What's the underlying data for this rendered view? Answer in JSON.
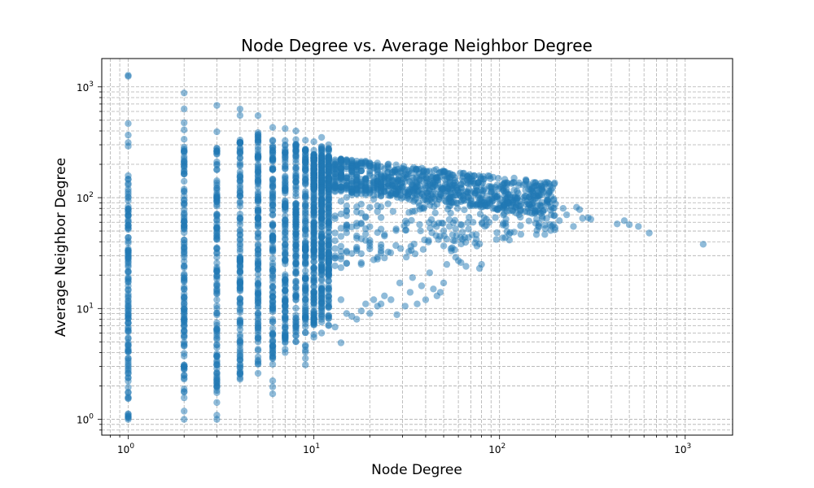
{
  "chart_data": {
    "type": "scatter",
    "title": "Node Degree vs. Average Neighbor Degree",
    "xlabel": "Node Degree",
    "ylabel": "Average Neighbor Degree",
    "x_scale": "log",
    "y_scale": "log",
    "xlim": [
      0.72,
      1800
    ],
    "ylim": [
      0.72,
      1800
    ],
    "grid": true,
    "grid_style": "dashed, major and minor ticks",
    "x_ticks": [
      {
        "value": 1,
        "base": "10",
        "exp": "0"
      },
      {
        "value": 10,
        "base": "10",
        "exp": "1"
      },
      {
        "value": 100,
        "base": "10",
        "exp": "2"
      },
      {
        "value": 1000,
        "base": "10",
        "exp": "3"
      }
    ],
    "y_ticks": [
      {
        "value": 1,
        "base": "10",
        "exp": "0"
      },
      {
        "value": 10,
        "base": "10",
        "exp": "1"
      },
      {
        "value": 100,
        "base": "10",
        "exp": "2"
      },
      {
        "value": 1000,
        "base": "10",
        "exp": "3"
      }
    ],
    "marker_color": "#1f77b4",
    "marker_alpha": 0.5,
    "columns": [
      {
        "degree": 1,
        "min": 1,
        "max": 1270,
        "dense_min": 1,
        "dense_max": 150
      },
      {
        "degree": 2,
        "min": 1,
        "max": 880,
        "dense_min": 1.5,
        "dense_max": 300
      },
      {
        "degree": 3,
        "min": 1,
        "max": 680,
        "dense_min": 1.7,
        "dense_max": 290
      },
      {
        "degree": 4,
        "min": 2.3,
        "max": 630,
        "dense_min": 2.5,
        "dense_max": 380
      },
      {
        "degree": 5,
        "min": 2.6,
        "max": 550,
        "dense_min": 3,
        "dense_max": 390
      },
      {
        "degree": 6,
        "min": 1.7,
        "max": 430,
        "dense_min": 3.5,
        "dense_max": 380
      },
      {
        "degree": 7,
        "min": 4,
        "max": 420,
        "dense_min": 5,
        "dense_max": 360
      },
      {
        "degree": 8,
        "min": 5,
        "max": 400,
        "dense_min": 5.5,
        "dense_max": 340
      },
      {
        "degree": 9,
        "min": 3.1,
        "max": 330,
        "dense_min": 6,
        "dense_max": 310
      },
      {
        "degree": 10,
        "min": 5.5,
        "max": 320,
        "dense_min": 7,
        "dense_max": 300
      },
      {
        "degree": 11,
        "min": 6,
        "max": 350,
        "dense_min": 7.5,
        "dense_max": 290
      },
      {
        "degree": 12,
        "min": 7,
        "max": 300,
        "dense_min": 8,
        "dense_max": 280
      }
    ],
    "tail_points": [
      [
        13,
        6.8
      ],
      [
        14,
        4.9
      ],
      [
        14,
        12
      ],
      [
        15,
        9
      ],
      [
        16,
        8.5
      ],
      [
        17,
        8
      ],
      [
        18,
        9.5
      ],
      [
        19,
        11
      ],
      [
        20,
        9
      ],
      [
        21,
        12
      ],
      [
        22,
        10.5
      ],
      [
        23,
        11
      ],
      [
        24,
        13
      ],
      [
        26,
        12
      ],
      [
        28,
        8.8
      ],
      [
        29,
        17
      ],
      [
        31,
        10.5
      ],
      [
        33,
        14
      ],
      [
        34,
        19
      ],
      [
        36,
        11
      ],
      [
        38,
        16
      ],
      [
        40,
        12
      ],
      [
        42,
        21
      ],
      [
        44,
        15
      ],
      [
        46,
        13
      ],
      [
        48,
        14
      ],
      [
        50,
        17
      ],
      [
        52,
        25
      ],
      [
        55,
        33
      ],
      [
        58,
        29
      ],
      [
        60,
        27
      ],
      [
        62,
        26
      ],
      [
        66,
        24
      ],
      [
        68,
        52
      ],
      [
        72,
        60
      ],
      [
        75,
        42
      ],
      [
        78,
        23
      ],
      [
        80,
        25
      ],
      [
        85,
        64
      ],
      [
        88,
        60
      ],
      [
        95,
        66
      ],
      [
        100,
        80
      ],
      [
        105,
        70
      ],
      [
        110,
        90
      ],
      [
        118,
        95
      ],
      [
        125,
        100
      ],
      [
        130,
        78
      ],
      [
        140,
        92
      ],
      [
        150,
        72
      ],
      [
        160,
        85
      ],
      [
        170,
        65
      ],
      [
        180,
        90
      ],
      [
        190,
        70
      ],
      [
        200,
        88
      ],
      [
        210,
        62
      ],
      [
        220,
        80
      ],
      [
        230,
        70
      ],
      [
        250,
        55
      ],
      [
        260,
        82
      ],
      [
        270,
        78
      ],
      [
        280,
        65
      ],
      [
        300,
        66
      ],
      [
        310,
        64
      ],
      [
        430,
        58
      ],
      [
        470,
        62
      ],
      [
        500,
        57
      ],
      [
        560,
        55
      ],
      [
        640,
        48
      ],
      [
        1250,
        38
      ]
    ],
    "band": {
      "x_range": [
        10,
        200
      ],
      "y_center_at_10": 170,
      "y_center_at_100": 110,
      "y_spread_decades": 0.25,
      "low_spread_decades": 0.9
    }
  }
}
